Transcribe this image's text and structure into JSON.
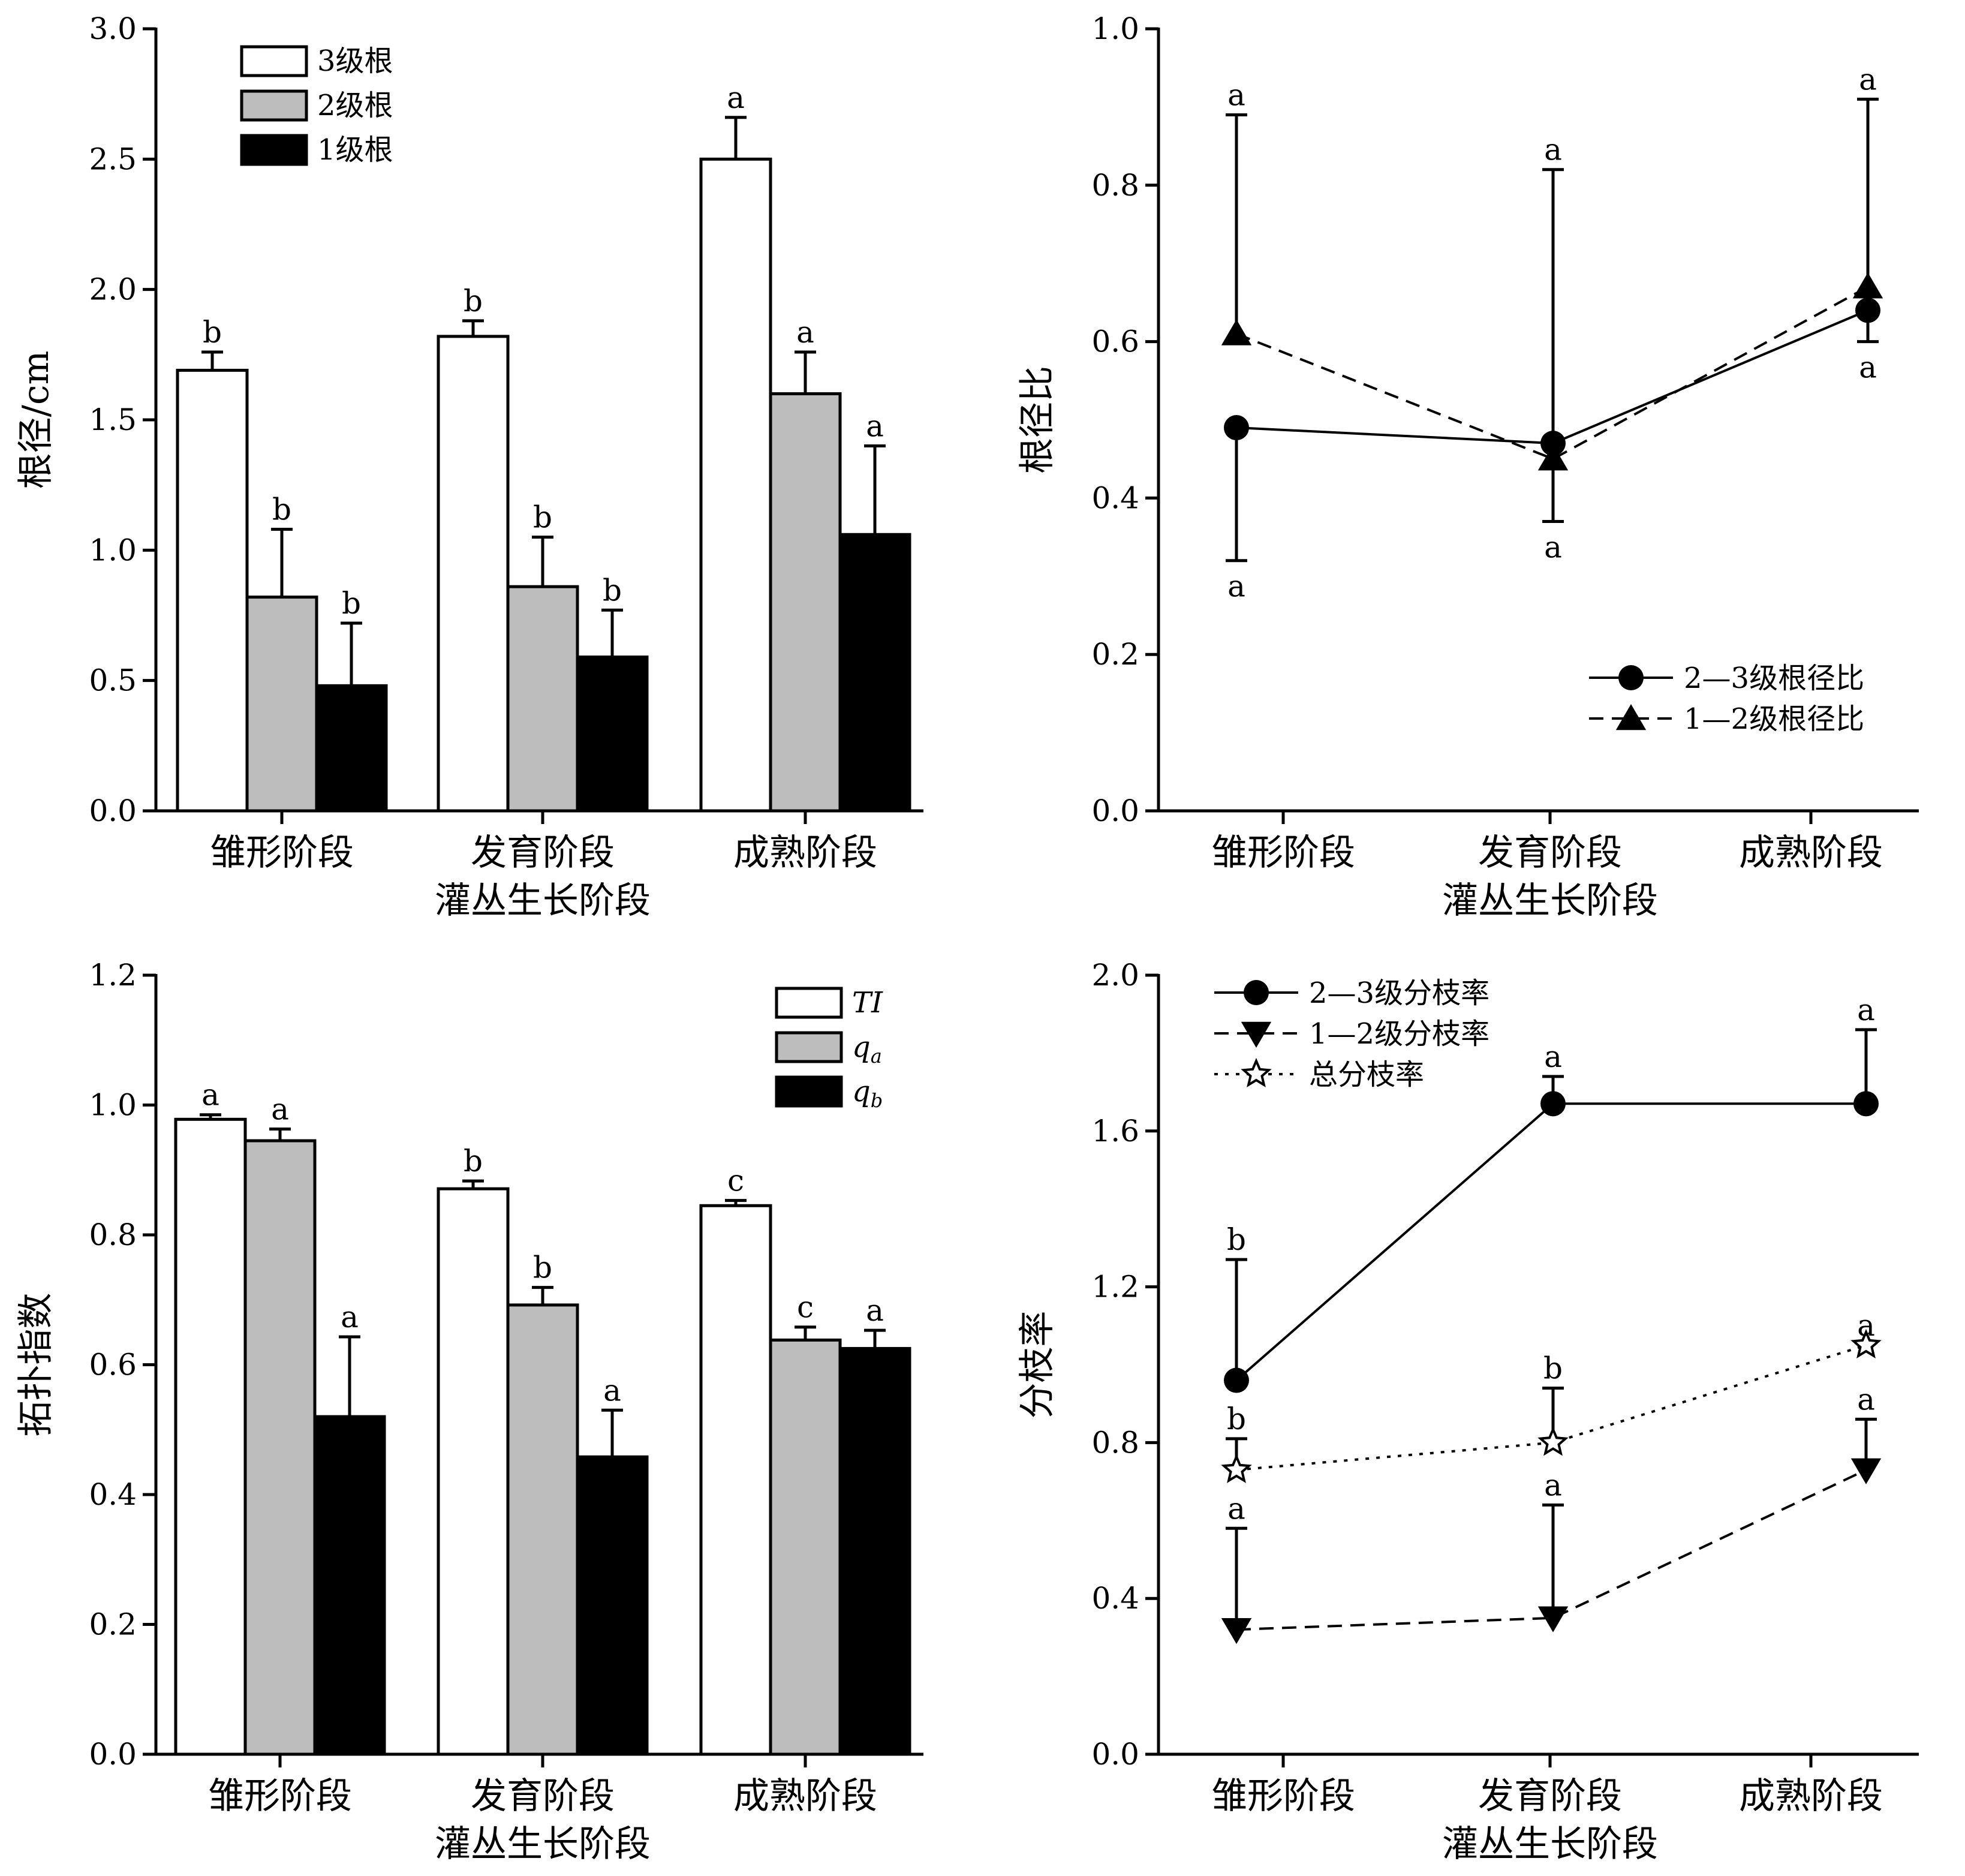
{
  "chart_data": [
    {
      "type": "bar",
      "xlabel": "灌丛生长阶段",
      "ylabel": "根径/cm",
      "ylim": [
        0,
        3.0
      ],
      "yticks": [
        "0.0",
        "0.5",
        "1.0",
        "1.5",
        "2.0",
        "2.5",
        "3.0"
      ],
      "categories": [
        "雏形阶段",
        "发育阶段",
        "成熟阶段"
      ],
      "legend_position": "top-left",
      "series": [
        {
          "name": "3级根",
          "fill": "#ffffff",
          "values": [
            1.69,
            1.82,
            2.5
          ],
          "errors": [
            0.07,
            0.06,
            0.16
          ],
          "labels": [
            "b",
            "b",
            "a"
          ]
        },
        {
          "name": "2级根",
          "fill": "#bdbdbd",
          "values": [
            0.82,
            0.86,
            1.6
          ],
          "errors": [
            0.26,
            0.19,
            0.16
          ],
          "labels": [
            "b",
            "b",
            "a"
          ]
        },
        {
          "name": "1级根",
          "fill": "#000000",
          "values": [
            0.48,
            0.59,
            1.06
          ],
          "errors": [
            0.24,
            0.18,
            0.34
          ],
          "labels": [
            "b",
            "b",
            "a"
          ]
        }
      ]
    },
    {
      "type": "line",
      "xlabel": "灌丛生长阶段",
      "ylabel": "根径比",
      "ylim": [
        0,
        1.0
      ],
      "yticks": [
        "0.0",
        "0.2",
        "0.4",
        "0.6",
        "0.8",
        "1.0"
      ],
      "categories": [
        "雏形阶段",
        "发育阶段",
        "成熟阶段"
      ],
      "legend_position": "bottom-right",
      "series": [
        {
          "name": "2—3级根径比",
          "line": "solid",
          "marker": "circle",
          "values": [
            0.49,
            0.47,
            0.64
          ],
          "err_low": [
            0.17,
            0.1,
            0.04
          ],
          "err_high": [
            0,
            0,
            0
          ],
          "labels": [
            "a",
            "a",
            "a"
          ],
          "label_pos": [
            "below",
            "below",
            "below"
          ]
        },
        {
          "name": "1—2级根径比",
          "line": "dashed",
          "marker": "triangle-up",
          "values": [
            0.61,
            0.45,
            0.67
          ],
          "err_low": [
            0,
            0,
            0
          ],
          "err_high": [
            0.28,
            0.37,
            0.24
          ],
          "labels": [
            "a",
            "a",
            "a"
          ],
          "label_pos": [
            "above",
            "above",
            "above"
          ]
        }
      ]
    },
    {
      "type": "bar",
      "xlabel": "灌丛生长阶段",
      "ylabel": "拓扑指数",
      "ylim": [
        0,
        1.2
      ],
      "yticks": [
        "0.0",
        "0.2",
        "0.4",
        "0.6",
        "0.8",
        "1.0",
        "1.2"
      ],
      "categories": [
        "雏形阶段",
        "发育阶段",
        "成熟阶段"
      ],
      "legend_position": "top-right",
      "series": [
        {
          "name": "TI",
          "fill": "#ffffff",
          "values": [
            0.978,
            0.871,
            0.845
          ],
          "errors": [
            0.007,
            0.012,
            0.008
          ],
          "labels": [
            "a",
            "b",
            "c"
          ]
        },
        {
          "name": "qa",
          "fill": "#bdbdbd",
          "values": [
            0.945,
            0.692,
            0.638
          ],
          "errors": [
            0.018,
            0.027,
            0.02
          ],
          "labels": [
            "a",
            "b",
            "c"
          ]
        },
        {
          "name": "qb",
          "fill": "#000000",
          "values": [
            0.52,
            0.458,
            0.625
          ],
          "errors": [
            0.123,
            0.072,
            0.028
          ],
          "labels": [
            "a",
            "a",
            "a"
          ]
        }
      ]
    },
    {
      "type": "line",
      "xlabel": "灌丛生长阶段",
      "ylabel": "分枝率",
      "ylim": [
        0,
        2.0
      ],
      "yticks": [
        "0.0",
        "0.4",
        "0.8",
        "1.2",
        "1.6",
        "2.0"
      ],
      "categories": [
        "雏形阶段",
        "发育阶段",
        "成熟阶段"
      ],
      "legend_position": "top-left",
      "series": [
        {
          "name": "2—3级分枝率",
          "line": "solid",
          "marker": "circle",
          "values": [
            0.96,
            1.67,
            1.67
          ],
          "err_high": [
            0.31,
            0.07,
            0.19
          ],
          "labels": [
            "b",
            "a",
            "a"
          ]
        },
        {
          "name": "1—2级分枝率",
          "line": "dashed",
          "marker": "triangle-down",
          "values": [
            0.32,
            0.35,
            0.73
          ],
          "err_high": [
            0.26,
            0.29,
            0.13
          ],
          "labels": [
            "a",
            "a",
            "a"
          ]
        },
        {
          "name": "总分枝率",
          "line": "dotted",
          "marker": "star",
          "values": [
            0.73,
            0.8,
            1.05
          ],
          "err_high": [
            0.08,
            0.14,
            0
          ],
          "labels": [
            "b",
            "b",
            "a"
          ]
        }
      ]
    }
  ]
}
